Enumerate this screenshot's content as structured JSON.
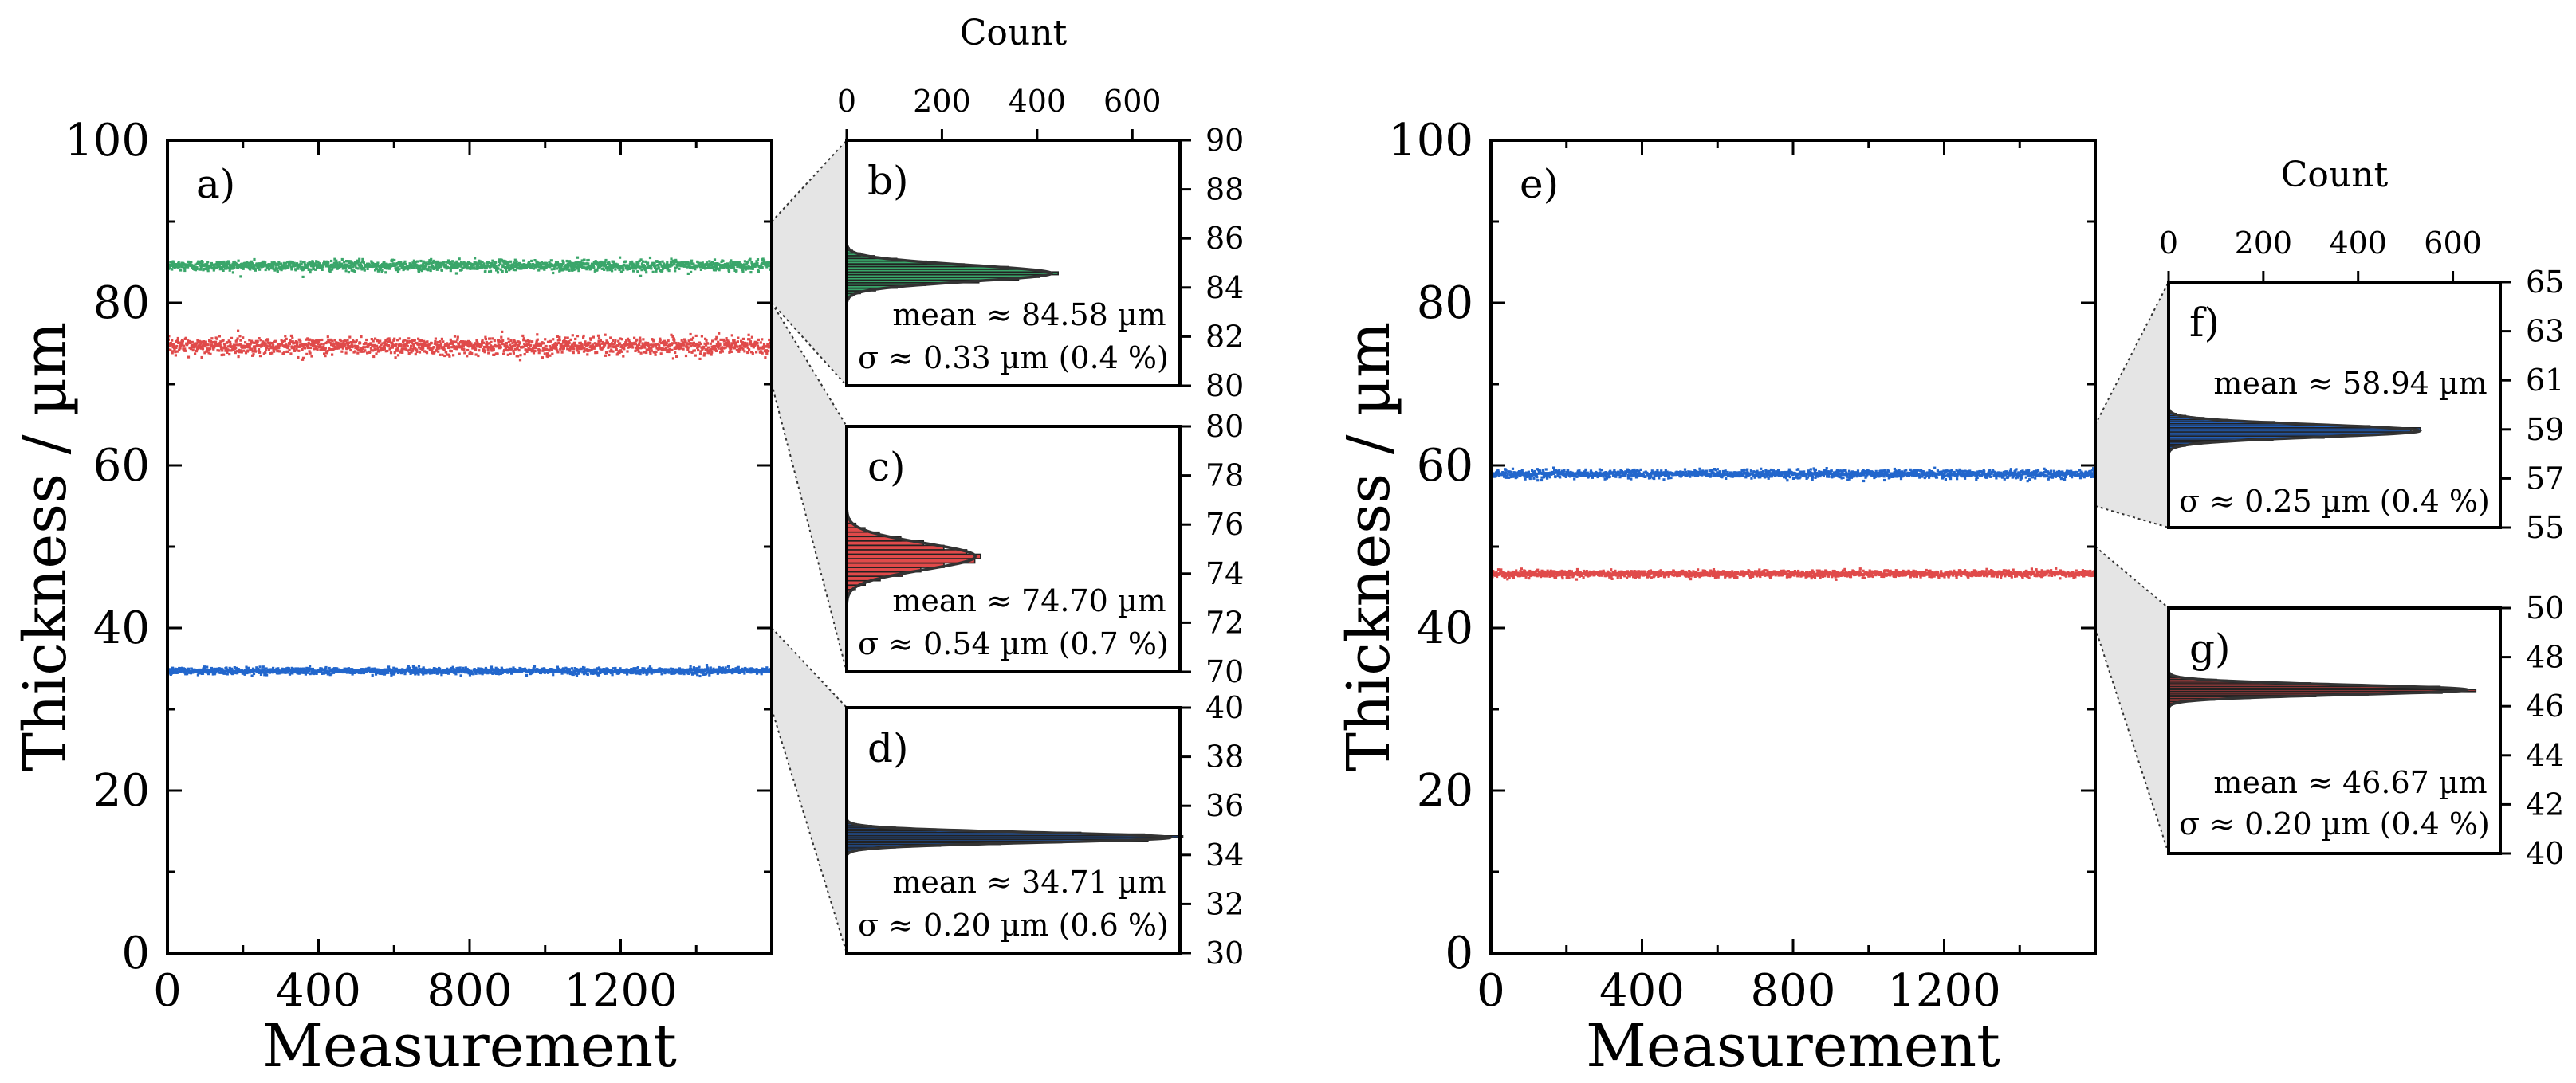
{
  "colors": {
    "green": "#3aa66a",
    "red": "#e04a4a",
    "blue": "#2266cc"
  },
  "chart_data": [
    {
      "id": "a",
      "type": "scatter",
      "panel_label": "a)",
      "xlabel": "Measurement",
      "ylabel": "Thickness / µm",
      "xlim": [
        0,
        1600
      ],
      "ylim": [
        0,
        100
      ],
      "xticks": [
        "0",
        "400",
        "800",
        "1200"
      ],
      "xtick_values": [
        0,
        400,
        800,
        1200
      ],
      "yticks": [
        "0",
        "20",
        "40",
        "60",
        "80",
        "100"
      ],
      "ytick_values": [
        0,
        20,
        40,
        60,
        80,
        100
      ],
      "series": [
        {
          "color": "green",
          "mean": 84.58,
          "sigma": 0.33,
          "n": 1600
        },
        {
          "color": "red",
          "mean": 74.7,
          "sigma": 0.54,
          "n": 1600
        },
        {
          "color": "blue",
          "mean": 34.71,
          "sigma": 0.2,
          "n": 1600
        }
      ]
    },
    {
      "id": "e",
      "type": "scatter",
      "panel_label": "e)",
      "xlabel": "Measurement",
      "ylabel": "Thickness / µm",
      "xlim": [
        0,
        1600
      ],
      "ylim": [
        0,
        100
      ],
      "xticks": [
        "0",
        "400",
        "800",
        "1200"
      ],
      "xtick_values": [
        0,
        400,
        800,
        1200
      ],
      "yticks": [
        "0",
        "20",
        "40",
        "60",
        "80",
        "100"
      ],
      "ytick_values": [
        0,
        20,
        40,
        60,
        80,
        100
      ],
      "series": [
        {
          "color": "blue",
          "mean": 58.94,
          "sigma": 0.25,
          "n": 1600
        },
        {
          "color": "red",
          "mean": 46.67,
          "sigma": 0.2,
          "n": 1600
        }
      ]
    },
    {
      "id": "b",
      "type": "bar",
      "orientation": "horizontal",
      "panel_label": "b)",
      "color": "green",
      "xlabel": "Count",
      "xlim": [
        0,
        700
      ],
      "xticks": [
        "0",
        "200",
        "400",
        "600"
      ],
      "xtick_values": [
        0,
        200,
        400,
        600
      ],
      "ylim": [
        80,
        90
      ],
      "yticks": [
        "80",
        "82",
        "84",
        "86",
        "88",
        "90"
      ],
      "ytick_values": [
        80,
        82,
        84,
        86,
        88,
        90
      ],
      "mean": 84.58,
      "sigma": 0.33,
      "peak_count": 430,
      "stat_mean": "mean ≈ 84.58 µm",
      "stat_sigma": "σ ≈ 0.33 µm  (0.4 %)"
    },
    {
      "id": "c",
      "type": "bar",
      "orientation": "horizontal",
      "panel_label": "c)",
      "color": "red",
      "xlim": [
        0,
        700
      ],
      "ylim": [
        70,
        80
      ],
      "yticks": [
        "70",
        "72",
        "74",
        "76",
        "78",
        "80"
      ],
      "ytick_values": [
        70,
        72,
        74,
        76,
        78,
        80
      ],
      "mean": 74.7,
      "sigma": 0.54,
      "peak_count": 270,
      "stat_mean": "mean ≈ 74.70 µm",
      "stat_sigma": "σ ≈ 0.54 µm  (0.7 %)"
    },
    {
      "id": "d",
      "type": "bar",
      "orientation": "horizontal",
      "panel_label": "d)",
      "color": "blue",
      "xlim": [
        0,
        700
      ],
      "ylim": [
        30,
        40
      ],
      "yticks": [
        "30",
        "32",
        "34",
        "36",
        "38",
        "40"
      ],
      "ytick_values": [
        30,
        32,
        34,
        36,
        38,
        40
      ],
      "mean": 34.71,
      "sigma": 0.2,
      "peak_count": 680,
      "stat_mean": "mean ≈ 34.71 µm",
      "stat_sigma": "σ ≈ 0.20 µm  (0.6 %)"
    },
    {
      "id": "f",
      "type": "bar",
      "orientation": "horizontal",
      "panel_label": "f)",
      "color": "blue",
      "xlabel": "Count",
      "xlim": [
        0,
        700
      ],
      "xticks": [
        "0",
        "200",
        "400",
        "600"
      ],
      "xtick_values": [
        0,
        200,
        400,
        600
      ],
      "ylim": [
        55,
        65
      ],
      "yticks": [
        "55",
        "57",
        "59",
        "61",
        "63",
        "65"
      ],
      "ytick_values": [
        55,
        57,
        59,
        61,
        63,
        65
      ],
      "mean": 58.94,
      "sigma": 0.25,
      "peak_count": 530,
      "stat_mean": "mean ≈ 58.94 µm",
      "stat_sigma": "σ ≈ 0.25 µm  (0.4 %)"
    },
    {
      "id": "g",
      "type": "bar",
      "orientation": "horizontal",
      "panel_label": "g)",
      "color": "red",
      "xlim": [
        0,
        700
      ],
      "ylim": [
        40,
        50
      ],
      "yticks": [
        "40",
        "42",
        "44",
        "46",
        "48",
        "50"
      ],
      "ytick_values": [
        40,
        42,
        44,
        46,
        48,
        50
      ],
      "mean": 46.67,
      "sigma": 0.2,
      "peak_count": 630,
      "stat_mean": "mean ≈ 46.67 µm",
      "stat_sigma": "σ ≈ 0.20 µm  (0.4 %)"
    }
  ]
}
